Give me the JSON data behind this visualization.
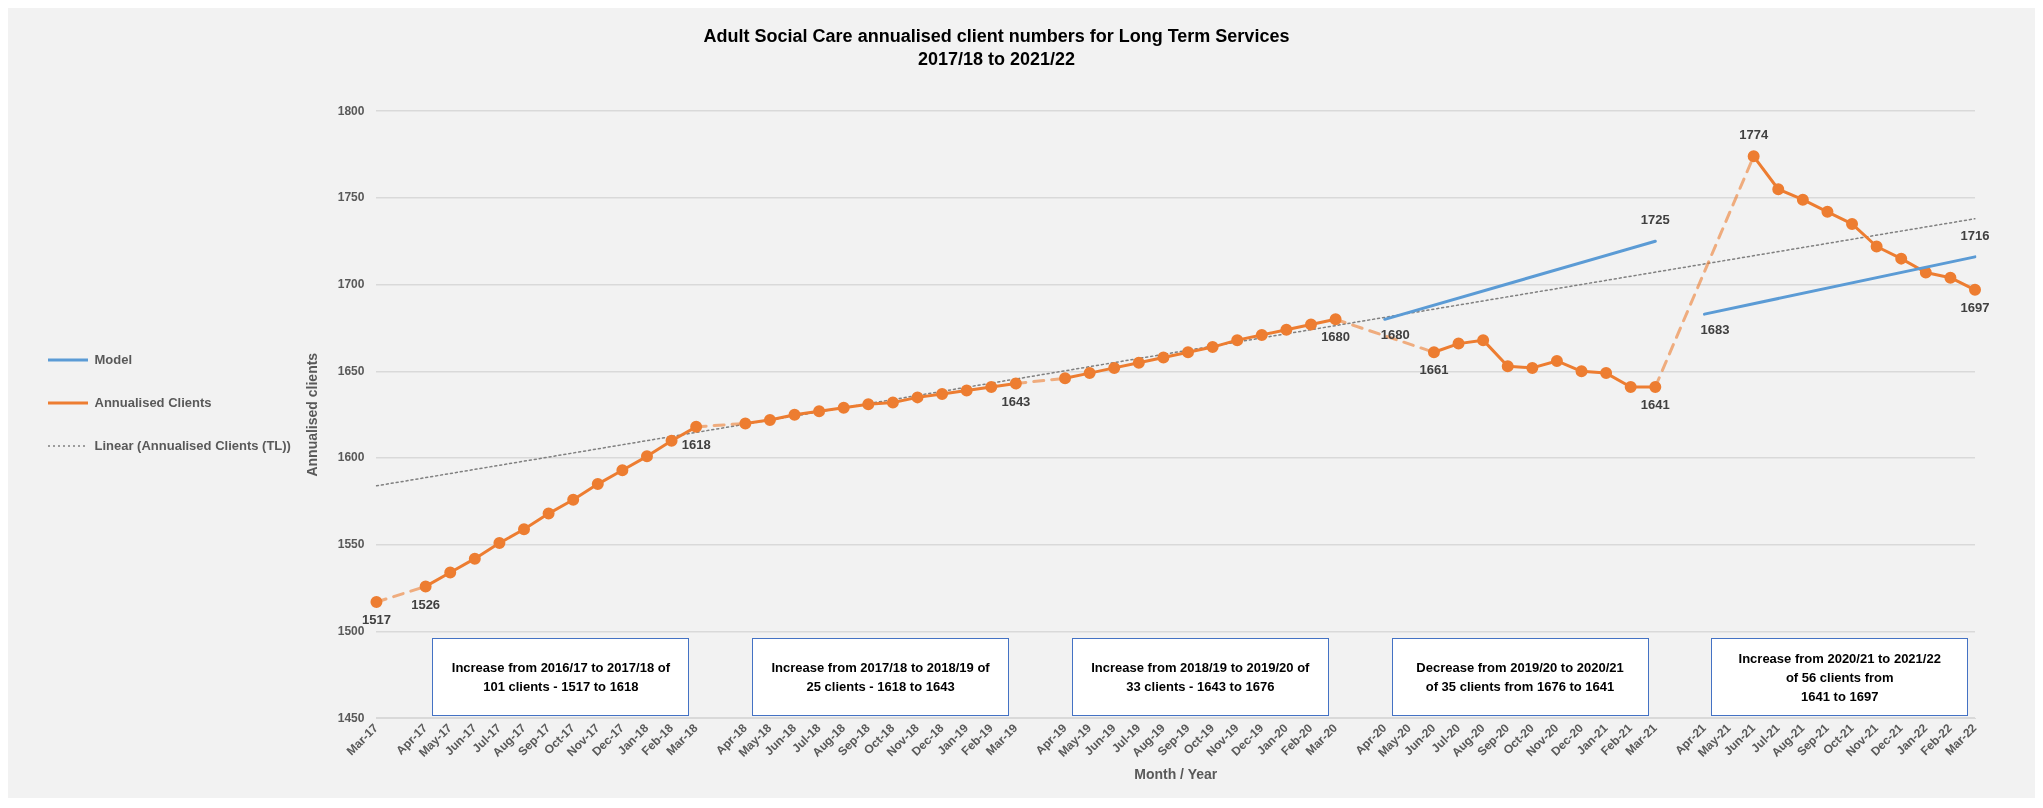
{
  "chart_data": {
    "type": "line",
    "title": "Adult Social Care annualised client numbers for Long Term Services",
    "subtitle": "2017/18 to 2021/22",
    "xlabel": "Month / Year",
    "ylabel": "Annualised clients",
    "categories": [
      "Mar-17",
      null,
      "Apr-17",
      "May-17",
      "Jun-17",
      "Jul-17",
      "Aug-17",
      "Sep-17",
      "Oct-17",
      "Nov-17",
      "Dec-17",
      "Jan-18",
      "Feb-18",
      "Mar-18",
      null,
      "Apr-18",
      "May-18",
      "Jun-18",
      "Jul-18",
      "Aug-18",
      "Sep-18",
      "Oct-18",
      "Nov-18",
      "Dec-18",
      "Jan-19",
      "Feb-19",
      "Mar-19",
      null,
      "Apr-19",
      "May-19",
      "Jun-19",
      "Jul-19",
      "Aug-19",
      "Sep-19",
      "Oct-19",
      "Nov-19",
      "Dec-19",
      "Jan-20",
      "Feb-20",
      "Mar-20",
      null,
      "Apr-20",
      "May-20",
      "Jun-20",
      "Jul-20",
      "Aug-20",
      "Sep-20",
      "Oct-20",
      "Nov-20",
      "Dec-20",
      "Jan-21",
      "Feb-21",
      "Mar-21",
      null,
      "Apr-21",
      "May-21",
      "Jun-21",
      "Jul-21",
      "Aug-21",
      "Sep-21",
      "Oct-21",
      "Nov-21",
      "Dec-21",
      "Jan-22",
      "Feb-22",
      "Mar-22"
    ],
    "series": [
      {
        "name": "Model",
        "color": "#5b9bd5",
        "marker": "none",
        "line_style": "solid",
        "values": [
          null,
          null,
          null,
          null,
          null,
          null,
          null,
          null,
          null,
          null,
          null,
          null,
          null,
          null,
          null,
          null,
          null,
          null,
          null,
          null,
          null,
          null,
          null,
          null,
          null,
          null,
          null,
          null,
          null,
          null,
          null,
          null,
          null,
          null,
          null,
          null,
          null,
          null,
          null,
          null,
          null,
          1680,
          null,
          null,
          null,
          null,
          null,
          null,
          null,
          null,
          null,
          null,
          1725,
          null,
          1683,
          null,
          null,
          null,
          null,
          null,
          null,
          null,
          null,
          null,
          null,
          1716
        ],
        "value_labels": [
          null,
          null,
          null,
          null,
          null,
          null,
          null,
          null,
          null,
          null,
          null,
          null,
          null,
          null,
          null,
          null,
          null,
          null,
          null,
          null,
          null,
          null,
          null,
          null,
          null,
          null,
          null,
          null,
          null,
          null,
          null,
          null,
          null,
          null,
          null,
          null,
          null,
          null,
          null,
          null,
          null,
          "1680",
          null,
          null,
          null,
          null,
          null,
          null,
          null,
          null,
          null,
          null,
          "1725",
          null,
          "1683",
          null,
          null,
          null,
          null,
          null,
          null,
          null,
          null,
          null,
          null,
          "1716"
        ]
      },
      {
        "name": "Annualised Clients",
        "color": "#ed7d31",
        "marker": "circle",
        "line_style": "solid",
        "values": [
          1517,
          null,
          1526,
          1534,
          1542,
          1551,
          1559,
          1568,
          1576,
          1585,
          1593,
          1601,
          1610,
          1618,
          null,
          1620,
          1622,
          1625,
          1627,
          1629,
          1631,
          1632,
          1635,
          1637,
          1639,
          1641,
          1643,
          null,
          1646,
          1649,
          1652,
          1655,
          1658,
          1661,
          1664,
          1668,
          1671,
          1674,
          1677,
          1680,
          null,
          null,
          null,
          1661,
          1666,
          1668,
          1653,
          1652,
          1656,
          1650,
          1649,
          1641,
          1641,
          null,
          null,
          null,
          1774,
          1755,
          1749,
          1742,
          1735,
          1722,
          1715,
          1707,
          1704,
          1697
        ],
        "value_labels": [
          "1517",
          null,
          "1526",
          null,
          null,
          null,
          null,
          null,
          null,
          null,
          null,
          null,
          null,
          "1618",
          null,
          null,
          null,
          null,
          null,
          null,
          null,
          null,
          null,
          null,
          null,
          null,
          "1643",
          null,
          null,
          null,
          null,
          null,
          null,
          null,
          null,
          null,
          null,
          null,
          null,
          "1680",
          null,
          null,
          null,
          "1661",
          null,
          null,
          null,
          null,
          null,
          null,
          null,
          null,
          "1641",
          null,
          null,
          null,
          "1774",
          null,
          null,
          null,
          null,
          null,
          null,
          null,
          null,
          "1697"
        ]
      },
      {
        "name": "Linear (Annualised Clients (TL))",
        "color": "#808080",
        "marker": "none",
        "line_style": "dotted",
        "values": [
          1584,
          null,
          null,
          null,
          null,
          null,
          null,
          null,
          null,
          null,
          null,
          null,
          null,
          null,
          null,
          null,
          null,
          null,
          null,
          null,
          null,
          null,
          null,
          null,
          null,
          null,
          null,
          null,
          null,
          null,
          null,
          null,
          null,
          null,
          null,
          null,
          null,
          null,
          null,
          null,
          null,
          null,
          null,
          null,
          null,
          null,
          null,
          null,
          null,
          null,
          null,
          null,
          null,
          null,
          null,
          null,
          null,
          null,
          null,
          null,
          null,
          null,
          null,
          null,
          null,
          1738
        ]
      }
    ],
    "ylim": [
      1450,
      1800
    ],
    "yticks": [
      1450,
      1500,
      1550,
      1600,
      1650,
      1700,
      1750,
      1800
    ],
    "grid": "y",
    "legend": "left",
    "annotations": [
      "Increase from 2016/17 to 2017/18 of\n101 clients - 1517 to 1618",
      "Increase from 2017/18 to 2018/19 of\n25 clients - 1618 to 1643",
      "Increase from 2018/19 to 2019/20 of\n33 clients - 1643 to 1676",
      "Decrease from 2019/20 to 2020/21\nof 35 clients from 1676 to 1641",
      "Increase from 2020/21 to 2021/22\nof  56 clients from\n1641 to 1697"
    ]
  }
}
